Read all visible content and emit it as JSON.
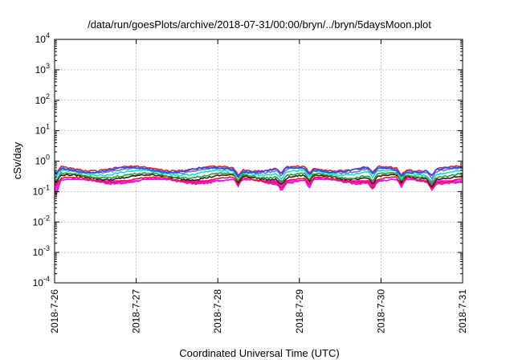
{
  "chart_data": {
    "type": "line",
    "title": "/data/run/goesPlots/archive/2018-07-31/00:00/bryn/../bryn/5daysMoon.plot",
    "xlabel": "Coordinated Universal Time (UTC)",
    "ylabel": "cSv/day",
    "y_scale": "log",
    "ylim": [
      0.0001,
      10000
    ],
    "y_ticks": [
      {
        "base": "10",
        "exp": "-4",
        "value": 0.0001
      },
      {
        "base": "10",
        "exp": "-3",
        "value": 0.001
      },
      {
        "base": "10",
        "exp": "-2",
        "value": 0.01
      },
      {
        "base": "10",
        "exp": "-1",
        "value": 0.1
      },
      {
        "base": "10",
        "exp": "0",
        "value": 1
      },
      {
        "base": "10",
        "exp": "1",
        "value": 10
      },
      {
        "base": "10",
        "exp": "2",
        "value": 100
      },
      {
        "base": "10",
        "exp": "3",
        "value": 1000
      },
      {
        "base": "10",
        "exp": "4",
        "value": 10000
      }
    ],
    "x_ticks": [
      "2018-7-26",
      "2018-7-27",
      "2018-7-28",
      "2018-7-29",
      "2018-7-30",
      "2018-7-31"
    ],
    "xlim": [
      "2018-7-26",
      "2018-7-31"
    ],
    "grid": true,
    "series": [
      {
        "color": "#ff00ff",
        "level": 0.22,
        "dips": [
          0.07,
          0.13,
          0.12,
          0.11,
          0.13,
          0.12,
          0.12
        ],
        "fill": true
      },
      {
        "color": "#e41a1c",
        "level": 0.25
      },
      {
        "color": "#222222",
        "level": 0.3
      },
      {
        "color": "#2ca02c",
        "level": 0.34
      },
      {
        "color": "#00e5e5",
        "level": 0.42
      },
      {
        "color": "#9467bd",
        "level": 0.5
      },
      {
        "color": "#d62728",
        "level": 0.57
      },
      {
        "color": "#1f4fff",
        "level": 0.52
      }
    ],
    "x_points_per_day": 48,
    "series_values_note": "values fluctuate around 0.2-0.6 cSv/day; dips near 2018-7-26 00:00, 7-28 06:00, 7-28 18:00, 7-29 03:00, 7-29 21:00, 7-30 06:00, 7-30 15:00"
  }
}
